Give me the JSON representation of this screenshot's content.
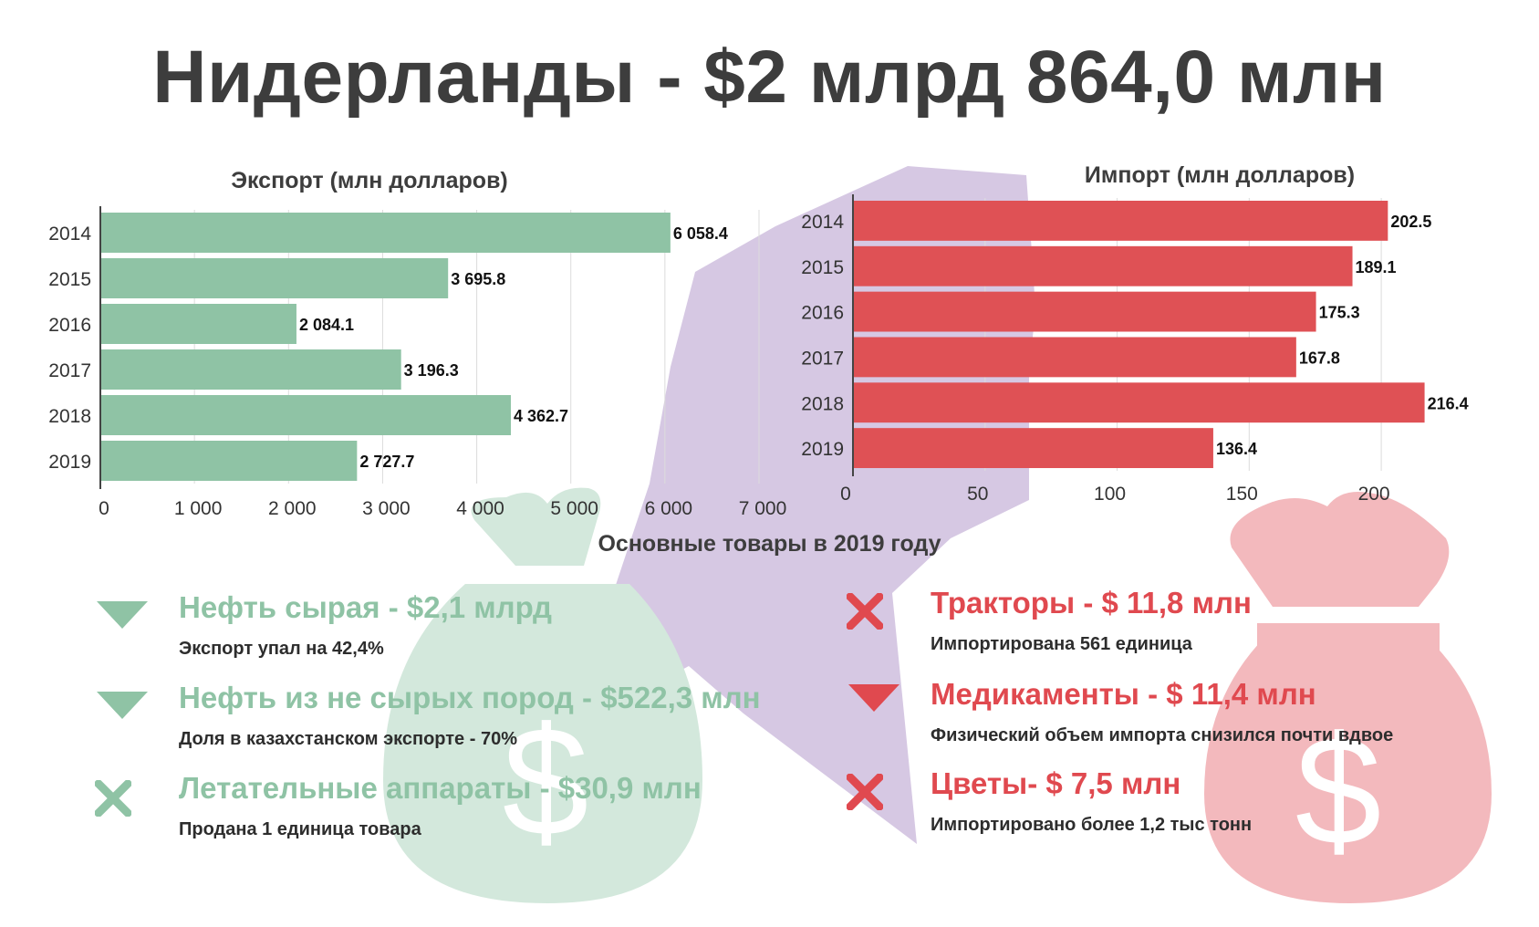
{
  "title": "Нидерланды - $2 млрд 864,0 млн",
  "colors": {
    "export": "#8fc3a5",
    "import": "#df5155",
    "map": "#d6c8e3",
    "bag_green": "#d3e8dc",
    "bag_red": "#f3b9bd"
  },
  "chart_data": [
    {
      "type": "bar",
      "orientation": "horizontal",
      "title": "Экспорт (млн долларов)",
      "categories": [
        "2014",
        "2015",
        "2016",
        "2017",
        "2018",
        "2019"
      ],
      "values": [
        6058.4,
        3695.8,
        2084.1,
        3196.3,
        4362.7,
        2727.7
      ],
      "value_labels": [
        "6 058.4",
        "3 695.8",
        "2 084.1",
        "3 196.3",
        "4 362.7",
        "2 727.7"
      ],
      "xlim": [
        0,
        7000
      ],
      "x_ticks": [
        0,
        1000,
        2000,
        3000,
        4000,
        5000,
        6000,
        7000
      ],
      "x_tick_labels": [
        "0",
        "1 000",
        "2 000",
        "3 000",
        "4 000",
        "5 000",
        "6 000",
        "7 000"
      ],
      "grid": true,
      "color": "#8fc3a5"
    },
    {
      "type": "bar",
      "orientation": "horizontal",
      "title": "Импорт (млн долларов)",
      "categories": [
        "2014",
        "2015",
        "2016",
        "2017",
        "2018",
        "2019"
      ],
      "values": [
        202.5,
        189.1,
        175.3,
        167.8,
        216.4,
        136.4
      ],
      "value_labels": [
        "202.5",
        "189.1",
        "175.3",
        "167.8",
        "216.4",
        "136.4"
      ],
      "xlim": [
        0,
        220
      ],
      "x_ticks": [
        0,
        50,
        100,
        150,
        200
      ],
      "x_tick_labels": [
        "0",
        "50",
        "100",
        "150",
        "200"
      ],
      "grid": true,
      "color": "#df5155"
    }
  ],
  "goods": {
    "title": "Основные товары в 2019 году",
    "export_items": [
      {
        "icon": "triangle-down-icon",
        "title": "Нефть сырая - $2,1 млрд",
        "subtitle": "Экспорт упал на 42,4%"
      },
      {
        "icon": "triangle-down-icon",
        "title": "Нефть из не сырых пород - $522,3 млн",
        "subtitle": "Доля в казахстанском экспорте - 70%"
      },
      {
        "icon": "cross-icon",
        "title": "Летательные аппараты - $30,9 млн",
        "subtitle": "Продана 1 единица товара"
      }
    ],
    "import_items": [
      {
        "icon": "cross-icon",
        "title": "Тракторы - $ 11,8 млн",
        "subtitle": "Импортирована 561 единица"
      },
      {
        "icon": "triangle-down-icon",
        "title": "Медикаменты - $ 11,4 млн",
        "subtitle": "Физический объем импорта снизился почти вдвое"
      },
      {
        "icon": "cross-icon",
        "title": "Цветы- $ 7,5 млн",
        "subtitle": "Импортировано более 1,2 тыс тонн"
      }
    ]
  }
}
